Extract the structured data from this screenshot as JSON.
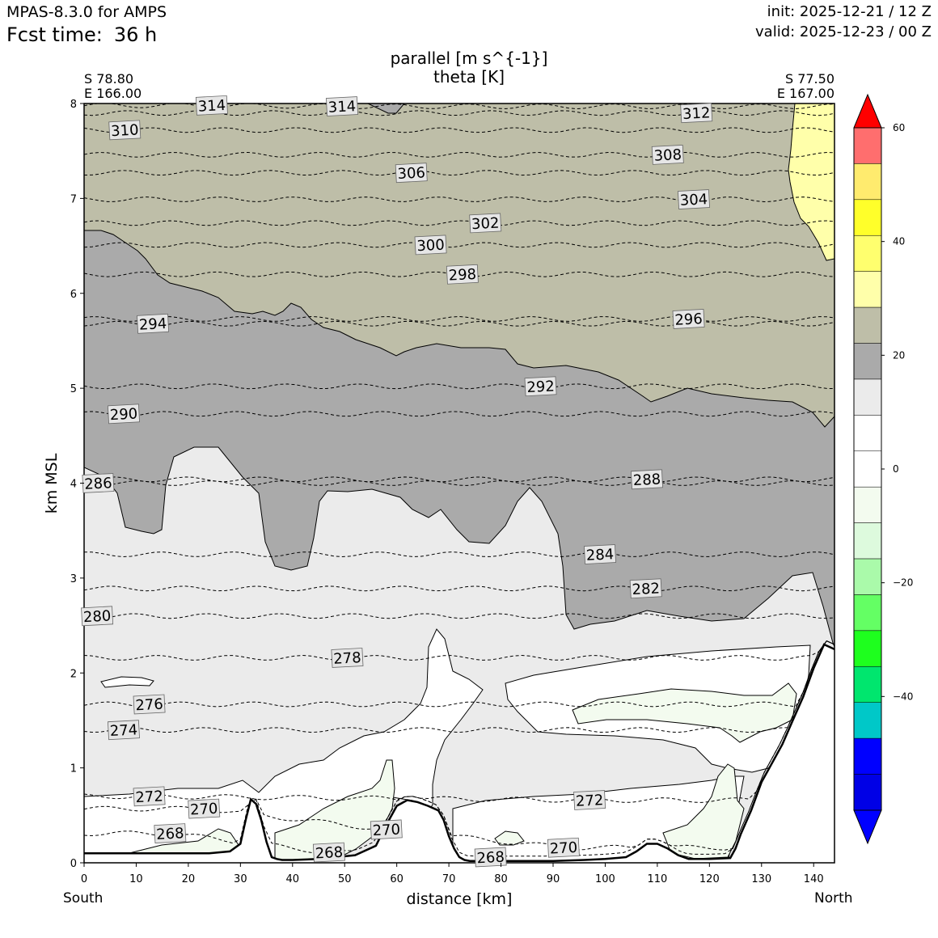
{
  "header": {
    "model": "MPAS-8.3.0 for AMPS",
    "fcst_label": "Fcst time:",
    "fcst_value": "36 h",
    "init": "init: 2025-12-21 / 12 Z",
    "valid": "valid: 2025-12-23 / 00 Z"
  },
  "titles": {
    "line1": "parallel [m s^{-1}]",
    "line2": "theta [K]"
  },
  "endpoints": {
    "left_lat": "S 78.80",
    "left_lon": "E 166.00",
    "right_lat": "S 77.50",
    "right_lon": "E 167.00"
  },
  "directions": {
    "left": "South",
    "right": "North"
  },
  "colors": {
    "fill_0_to_10": "#ffffff",
    "fill_10_to_15": "#ebebeb",
    "fill_15_to_20": "#aaaaaa",
    "fill_20_to_25": "#bebea8",
    "fill_25_to_30": "#ffffaa",
    "fill_neg5_to_0": "#f3fbef",
    "terrain": "#ffffff"
  },
  "chart_data": {
    "type": "contourf",
    "title": "parallel [m s^{-1}] / theta [K]",
    "xlabel": "distance [km]",
    "ylabel": "km MSL",
    "xlim": [
      0,
      144
    ],
    "ylim": [
      0,
      8
    ],
    "xticks": [
      0,
      10,
      20,
      30,
      40,
      50,
      60,
      70,
      80,
      90,
      100,
      110,
      120,
      130,
      140
    ],
    "yticks": [
      0,
      1,
      2,
      3,
      4,
      5,
      6,
      7,
      8
    ],
    "colorbar": {
      "min": -60,
      "max": 60,
      "step": 5,
      "tick_values": [
        60,
        40,
        20,
        0,
        -20,
        -40
      ],
      "tick_labels": [
        "60",
        "40",
        "20",
        "0",
        "−20",
        "−40"
      ],
      "colors": [
        "#ff0000",
        "#ff6e6e",
        "#ffeb6e",
        "#ffff2a",
        "#ffff6e",
        "#ffffaa",
        "#bebea8",
        "#aaaaaa",
        "#ebebeb",
        "#ffffff",
        "#ffffff",
        "#f3fbef",
        "#ddfadd",
        "#aafaaa",
        "#64ff64",
        "#1eff1e",
        "#00e66e",
        "#00c8c8",
        "#0000ff",
        "#0000e6",
        "#0000ff"
      ]
    },
    "theta_contours_K": [
      268,
      270,
      272,
      274,
      276,
      278,
      280,
      282,
      284,
      286,
      288,
      290,
      292,
      294,
      296,
      298,
      300,
      302,
      304,
      306,
      308,
      310,
      312,
      314
    ],
    "theta_labels": [
      {
        "text": "314",
        "x": 24.5,
        "y": 7.98
      },
      {
        "text": "314",
        "x": 49.5,
        "y": 7.97
      },
      {
        "text": "312",
        "x": 117.5,
        "y": 7.9
      },
      {
        "text": "310",
        "x": 7.8,
        "y": 7.72
      },
      {
        "text": "308",
        "x": 112,
        "y": 7.46
      },
      {
        "text": "306",
        "x": 62.8,
        "y": 7.27
      },
      {
        "text": "304",
        "x": 117,
        "y": 6.99
      },
      {
        "text": "302",
        "x": 77,
        "y": 6.74
      },
      {
        "text": "300",
        "x": 66.5,
        "y": 6.51
      },
      {
        "text": "298",
        "x": 72.6,
        "y": 6.2
      },
      {
        "text": "296",
        "x": 116,
        "y": 5.73
      },
      {
        "text": "294",
        "x": 13.2,
        "y": 5.68
      },
      {
        "text": "292",
        "x": 87.6,
        "y": 5.02
      },
      {
        "text": "290",
        "x": 7.6,
        "y": 4.73
      },
      {
        "text": "288",
        "x": 108,
        "y": 4.04
      },
      {
        "text": "286",
        "x": 2.7,
        "y": 4.0
      },
      {
        "text": "284",
        "x": 99,
        "y": 3.25
      },
      {
        "text": "282",
        "x": 107.8,
        "y": 2.89
      },
      {
        "text": "280",
        "x": 2.5,
        "y": 2.6
      },
      {
        "text": "278",
        "x": 50.5,
        "y": 2.16
      },
      {
        "text": "276",
        "x": 12.5,
        "y": 1.67
      },
      {
        "text": "274",
        "x": 7.6,
        "y": 1.4
      },
      {
        "text": "272",
        "x": 12.5,
        "y": 0.7
      },
      {
        "text": "272",
        "x": 97,
        "y": 0.66
      },
      {
        "text": "270",
        "x": 23,
        "y": 0.57
      },
      {
        "text": "270",
        "x": 58,
        "y": 0.35
      },
      {
        "text": "270",
        "x": 92,
        "y": 0.16
      },
      {
        "text": "268",
        "x": 16.5,
        "y": 0.31
      },
      {
        "text": "268",
        "x": 47,
        "y": 0.11
      },
      {
        "text": "268",
        "x": 78,
        "y": 0.06
      }
    ],
    "filled_regions_m_s": [
      {
        "range": "20 to 25",
        "description": "upper layer, base ~6.7 km (south) to ~4.6 km (north)"
      },
      {
        "range": "15 to 20",
        "description": "mid layer down to ~2.3-4.4 km"
      },
      {
        "range": "25 to 30",
        "description": "north-top corner above ~6.3 km, x > 135 km"
      },
      {
        "range": "10 to 15",
        "description": "lower mid layer"
      },
      {
        "range": "0 to 10",
        "description": "boundary-layer jets near terrain"
      },
      {
        "range": "-5 to 0",
        "description": "thin near-surface patches"
      }
    ],
    "terrain_km": {
      "x": [
        0,
        24,
        28,
        30,
        31,
        32,
        33,
        34,
        35,
        36,
        37,
        38,
        40,
        45,
        52,
        56,
        58,
        60,
        62,
        64,
        66,
        68,
        69,
        70,
        71,
        72,
        73,
        74,
        78,
        84,
        90,
        96,
        100,
        104,
        106,
        108,
        110,
        112,
        114,
        116,
        120,
        124,
        125,
        126,
        128,
        130,
        132,
        134,
        136,
        138,
        140,
        142,
        144
      ],
      "y": [
        0.1,
        0.1,
        0.12,
        0.2,
        0.45,
        0.67,
        0.62,
        0.45,
        0.22,
        0.06,
        0.04,
        0.03,
        0.03,
        0.04,
        0.08,
        0.18,
        0.4,
        0.6,
        0.66,
        0.64,
        0.6,
        0.55,
        0.45,
        0.28,
        0.15,
        0.06,
        0.03,
        0.02,
        0.02,
        0.02,
        0.02,
        0.03,
        0.04,
        0.06,
        0.12,
        0.2,
        0.2,
        0.15,
        0.08,
        0.04,
        0.04,
        0.05,
        0.15,
        0.3,
        0.55,
        0.85,
        1.05,
        1.25,
        1.5,
        1.75,
        2.05,
        2.3,
        2.25
      ]
    }
  }
}
